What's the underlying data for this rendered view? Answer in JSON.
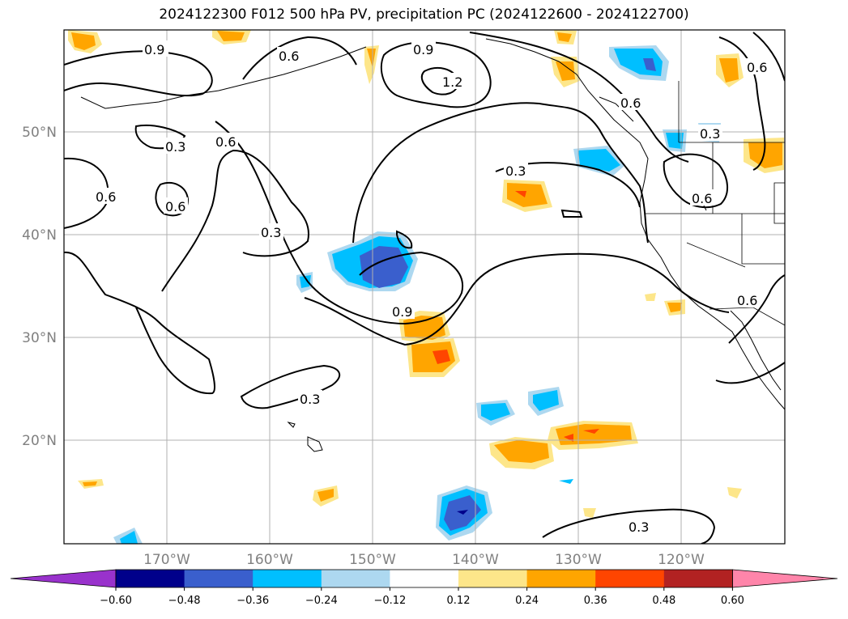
{
  "title": "2024122300 F012 500 hPa PV, precipitation PC (2024122600 - 2024122700)",
  "lat_labels": [
    "50°N",
    "40°N",
    "30°N",
    "20°N"
  ],
  "lon_labels": [
    "170°W",
    "160°W",
    "150°W",
    "140°W",
    "130°W",
    "120°W"
  ],
  "colorbar": {
    "ticks": [
      "−0.60",
      "−0.48",
      "−0.36",
      "−0.24",
      "−0.12",
      "0.12",
      "0.24",
      "0.36",
      "0.48",
      "0.60"
    ],
    "colors": [
      "#9932cc",
      "#00008b",
      "#3a5fcd",
      "#00bfff",
      "#add8f0",
      "#ffffff",
      "#fde68a",
      "#ffa500",
      "#ff4500",
      "#b22222",
      "#ff85aa"
    ]
  },
  "contour_labels": [
    "0.9",
    "0.6",
    "0.9",
    "1.2",
    "0.6",
    "0.3",
    "0.6",
    "0.6",
    "0.6",
    "0.3",
    "0.3",
    "0.9",
    "0.3",
    "0.3",
    "0.6",
    "0.3",
    "0.6",
    "0.6"
  ],
  "colors": {
    "contour": "#000000",
    "grid": "#b0b0b0",
    "coast": "#000000"
  }
}
